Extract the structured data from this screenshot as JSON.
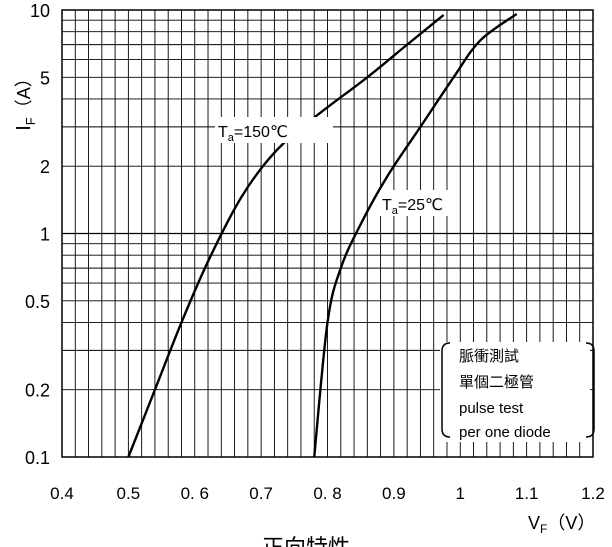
{
  "chart_data": {
    "type": "line",
    "x_scale": "linear",
    "y_scale": "log",
    "xlim": [
      0.4,
      1.2
    ],
    "ylim": [
      0.1,
      10
    ],
    "x_ticks": [
      0.4,
      0.5,
      0.6,
      0.7,
      0.8,
      0.9,
      1.0,
      1.1,
      1.2
    ],
    "x_tick_labels": [
      "0.4",
      "0.5",
      "0. 6",
      "0.7",
      "0. 8",
      "0.9",
      "1",
      "1.1",
      "1.2"
    ],
    "y_ticks": [
      0.1,
      0.2,
      0.5,
      1,
      2,
      5,
      10
    ],
    "y_tick_labels": [
      "0.1",
      "0.2",
      "0.5",
      "1",
      "2",
      "5",
      "10"
    ],
    "grid": true,
    "ylabel": {
      "main": "I",
      "sub": "F",
      "unit": "（A）"
    },
    "xlabel": {
      "main": "V",
      "sub": "F",
      "unit": "（V）"
    },
    "bottom_title": "正向特性",
    "series": [
      {
        "name": "Ta=150℃",
        "label_main": "T",
        "label_sub": "a",
        "label_rest": "=150℃",
        "x": [
          0.5,
          0.54,
          0.58,
          0.62,
          0.67,
          0.72,
          0.78,
          0.86,
          0.92,
          0.975
        ],
        "y": [
          0.1,
          0.2,
          0.4,
          0.75,
          1.45,
          2.3,
          3.3,
          5.0,
          7.0,
          9.5
        ]
      },
      {
        "name": "Ta=25℃",
        "label_main": "T",
        "label_sub": "a",
        "label_rest": "=25℃",
        "x": [
          0.78,
          0.8,
          0.82,
          0.85,
          0.89,
          0.94,
          0.99,
          1.03,
          1.085
        ],
        "y": [
          0.1,
          0.4,
          0.7,
          1.1,
          1.8,
          3.0,
          5.0,
          7.3,
          9.6
        ]
      }
    ],
    "annotation_lines": [
      "脈衝測試",
      "單個二極管",
      "pulse test",
      "per one diode"
    ]
  }
}
